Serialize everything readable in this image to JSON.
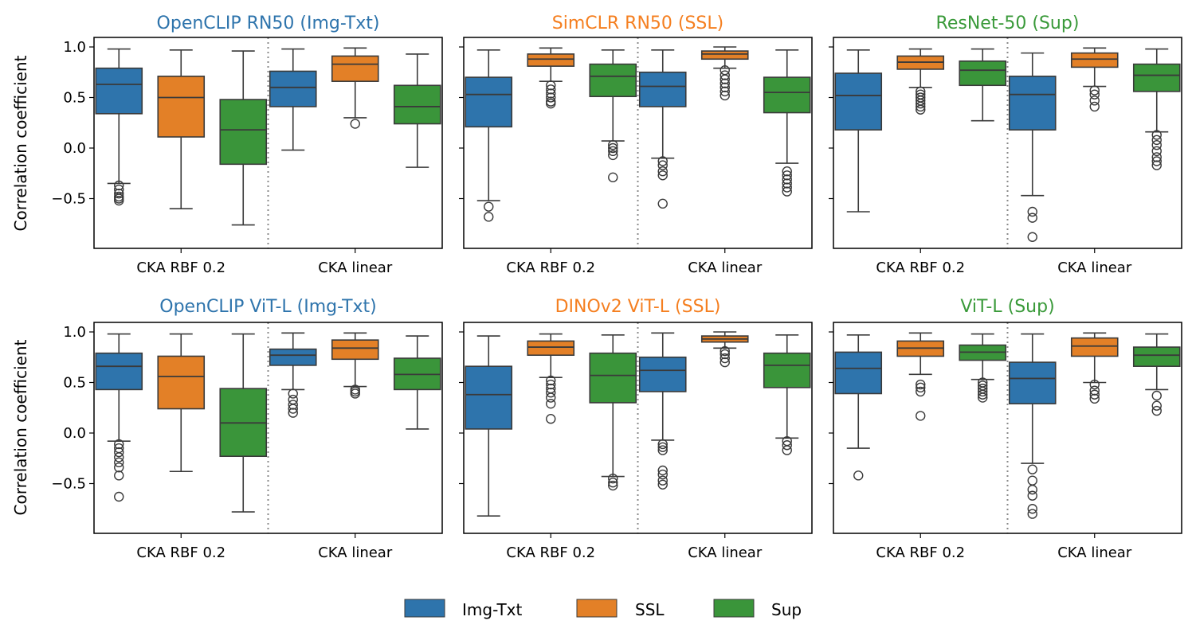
{
  "legend": {
    "position": "bottom-center",
    "items": [
      {
        "label": "Img-Txt",
        "color": "#2e74ac"
      },
      {
        "label": "SSL",
        "color": "#e38027"
      },
      {
        "label": "Sup",
        "color": "#3a953a"
      }
    ]
  },
  "y_axis_label": "Correlation coefficient",
  "chart_data": [
    {
      "type": "boxplot",
      "title": "OpenCLIP RN50 (Img-Txt)",
      "title_color": "#2e74ac",
      "categories": [
        "CKA RBF 0.2",
        "CKA linear"
      ],
      "ylabel": "Correlation coefficient",
      "yticks": [
        1.0,
        0.5,
        0.0,
        -0.5
      ],
      "ytick_labels": [
        "1.0",
        "0.5",
        "0.0",
        "−0.5"
      ],
      "ylim": [
        -1.0,
        1.1
      ],
      "series": [
        {
          "name": "Img-Txt",
          "boxes": [
            {
              "whislo": -0.35,
              "q1": 0.34,
              "med": 0.63,
              "q3": 0.79,
              "whishi": 0.98,
              "fliers": [
                -0.37,
                -0.41,
                -0.45,
                -0.48,
                -0.5,
                -0.52
              ]
            },
            {
              "whislo": -0.02,
              "q1": 0.41,
              "med": 0.6,
              "q3": 0.76,
              "whishi": 0.98,
              "fliers": []
            }
          ]
        },
        {
          "name": "SSL",
          "boxes": [
            {
              "whislo": -0.6,
              "q1": 0.11,
              "med": 0.5,
              "q3": 0.71,
              "whishi": 0.97,
              "fliers": []
            },
            {
              "whislo": 0.3,
              "q1": 0.66,
              "med": 0.83,
              "q3": 0.91,
              "whishi": 0.99,
              "fliers": [
                0.24
              ]
            }
          ]
        },
        {
          "name": "Sup",
          "boxes": [
            {
              "whislo": -0.76,
              "q1": -0.16,
              "med": 0.18,
              "q3": 0.48,
              "whishi": 0.96,
              "fliers": []
            },
            {
              "whislo": -0.19,
              "q1": 0.24,
              "med": 0.41,
              "q3": 0.62,
              "whishi": 0.93,
              "fliers": []
            }
          ]
        }
      ]
    },
    {
      "type": "boxplot",
      "title": "SimCLR RN50 (SSL)",
      "title_color": "#f57f20",
      "categories": [
        "CKA RBF 0.2",
        "CKA linear"
      ],
      "ylabel": "",
      "yticks": [
        1.0,
        0.5,
        0.0,
        -0.5
      ],
      "ytick_labels": [],
      "ylim": [
        -1.0,
        1.1
      ],
      "series": [
        {
          "name": "Img-Txt",
          "boxes": [
            {
              "whislo": -0.52,
              "q1": 0.21,
              "med": 0.53,
              "q3": 0.7,
              "whishi": 0.97,
              "fliers": [
                -0.58,
                -0.68
              ]
            },
            {
              "whislo": -0.1,
              "q1": 0.41,
              "med": 0.61,
              "q3": 0.75,
              "whishi": 0.97,
              "fliers": [
                -0.13,
                -0.17,
                -0.23,
                -0.27,
                -0.55
              ]
            }
          ]
        },
        {
          "name": "SSL",
          "boxes": [
            {
              "whislo": 0.66,
              "q1": 0.81,
              "med": 0.88,
              "q3": 0.93,
              "whishi": 0.99,
              "fliers": [
                0.62,
                0.58,
                0.54,
                0.5,
                0.46,
                0.44
              ]
            },
            {
              "whislo": 0.79,
              "q1": 0.88,
              "med": 0.93,
              "q3": 0.96,
              "whishi": 1.0,
              "fliers": [
                0.77,
                0.72,
                0.68,
                0.64,
                0.6,
                0.56,
                0.52
              ]
            }
          ]
        },
        {
          "name": "Sup",
          "boxes": [
            {
              "whislo": 0.07,
              "q1": 0.51,
              "med": 0.71,
              "q3": 0.83,
              "whishi": 0.97,
              "fliers": [
                0.03,
                0.0,
                -0.03,
                -0.07,
                -0.29
              ]
            },
            {
              "whislo": -0.15,
              "q1": 0.35,
              "med": 0.55,
              "q3": 0.7,
              "whishi": 0.97,
              "fliers": [
                -0.23,
                -0.27,
                -0.31,
                -0.35,
                -0.39,
                -0.43
              ]
            }
          ]
        }
      ]
    },
    {
      "type": "boxplot",
      "title": "ResNet-50 (Sup)",
      "title_color": "#3a9a3a",
      "categories": [
        "CKA RBF 0.2",
        "CKA linear"
      ],
      "ylabel": "",
      "yticks": [
        1.0,
        0.5,
        0.0,
        -0.5
      ],
      "ytick_labels": [],
      "ylim": [
        -1.0,
        1.1
      ],
      "series": [
        {
          "name": "Img-Txt",
          "boxes": [
            {
              "whislo": -0.63,
              "q1": 0.18,
              "med": 0.52,
              "q3": 0.74,
              "whishi": 0.97,
              "fliers": []
            },
            {
              "whislo": -0.47,
              "q1": 0.18,
              "med": 0.53,
              "q3": 0.71,
              "whishi": 0.94,
              "fliers": [
                -0.63,
                -0.69,
                -0.88
              ]
            }
          ]
        },
        {
          "name": "SSL",
          "boxes": [
            {
              "whislo": 0.6,
              "q1": 0.78,
              "med": 0.85,
              "q3": 0.91,
              "whishi": 0.98,
              "fliers": [
                0.56,
                0.53,
                0.5,
                0.47,
                0.44,
                0.41,
                0.38
              ]
            },
            {
              "whislo": 0.61,
              "q1": 0.8,
              "med": 0.88,
              "q3": 0.94,
              "whishi": 0.99,
              "fliers": [
                0.57,
                0.53,
                0.47,
                0.41
              ]
            }
          ]
        },
        {
          "name": "Sup",
          "boxes": [
            {
              "whislo": 0.27,
              "q1": 0.62,
              "med": 0.77,
              "q3": 0.86,
              "whishi": 0.98,
              "fliers": []
            },
            {
              "whislo": 0.16,
              "q1": 0.56,
              "med": 0.72,
              "q3": 0.83,
              "whishi": 0.98,
              "fliers": [
                0.13,
                0.08,
                0.03,
                -0.03,
                -0.09,
                -0.13,
                -0.17
              ]
            }
          ]
        }
      ]
    },
    {
      "type": "boxplot",
      "title": "OpenCLIP ViT-L (Img-Txt)",
      "title_color": "#2e74ac",
      "categories": [
        "CKA RBF 0.2",
        "CKA linear"
      ],
      "ylabel": "Correlation coefficient",
      "yticks": [
        1.0,
        0.5,
        0.0,
        -0.5
      ],
      "ytick_labels": [
        "1.0",
        "0.5",
        "0.0",
        "−0.5"
      ],
      "ylim": [
        -1.0,
        1.1
      ],
      "series": [
        {
          "name": "Img-Txt",
          "boxes": [
            {
              "whislo": -0.08,
              "q1": 0.43,
              "med": 0.66,
              "q3": 0.79,
              "whishi": 0.98,
              "fliers": [
                -0.11,
                -0.15,
                -0.19,
                -0.24,
                -0.29,
                -0.34,
                -0.42,
                -0.63
              ]
            },
            {
              "whislo": 0.43,
              "q1": 0.67,
              "med": 0.77,
              "q3": 0.83,
              "whishi": 0.99,
              "fliers": [
                0.39,
                0.33,
                0.28,
                0.24,
                0.2
              ]
            }
          ]
        },
        {
          "name": "SSL",
          "boxes": [
            {
              "whislo": -0.38,
              "q1": 0.24,
              "med": 0.56,
              "q3": 0.76,
              "whishi": 0.98,
              "fliers": []
            },
            {
              "whislo": 0.46,
              "q1": 0.73,
              "med": 0.84,
              "q3": 0.92,
              "whishi": 0.99,
              "fliers": [
                0.43,
                0.41,
                0.39
              ]
            }
          ]
        },
        {
          "name": "Sup",
          "boxes": [
            {
              "whislo": -0.78,
              "q1": -0.23,
              "med": 0.1,
              "q3": 0.44,
              "whishi": 0.98,
              "fliers": []
            },
            {
              "whislo": 0.04,
              "q1": 0.43,
              "med": 0.58,
              "q3": 0.74,
              "whishi": 0.96,
              "fliers": []
            }
          ]
        }
      ]
    },
    {
      "type": "boxplot",
      "title": "DINOv2 ViT-L (SSL)",
      "title_color": "#f57f20",
      "categories": [
        "CKA RBF 0.2",
        "CKA linear"
      ],
      "ylabel": "",
      "yticks": [
        1.0,
        0.5,
        0.0,
        -0.5
      ],
      "ytick_labels": [],
      "ylim": [
        -1.0,
        1.1
      ],
      "series": [
        {
          "name": "Img-Txt",
          "boxes": [
            {
              "whislo": -0.82,
              "q1": 0.04,
              "med": 0.38,
              "q3": 0.66,
              "whishi": 0.96,
              "fliers": []
            },
            {
              "whislo": -0.07,
              "q1": 0.41,
              "med": 0.62,
              "q3": 0.75,
              "whishi": 0.99,
              "fliers": [
                -0.11,
                -0.14,
                -0.17,
                -0.37,
                -0.41,
                -0.47,
                -0.51
              ]
            }
          ]
        },
        {
          "name": "SSL",
          "boxes": [
            {
              "whislo": 0.55,
              "q1": 0.77,
              "med": 0.85,
              "q3": 0.91,
              "whishi": 0.98,
              "fliers": [
                0.52,
                0.48,
                0.44,
                0.4,
                0.35,
                0.29,
                0.14
              ]
            },
            {
              "whislo": 0.84,
              "q1": 0.9,
              "med": 0.93,
              "q3": 0.96,
              "whishi": 1.0,
              "fliers": [
                0.81,
                0.78,
                0.74,
                0.7
              ]
            }
          ]
        },
        {
          "name": "Sup",
          "boxes": [
            {
              "whislo": -0.43,
              "q1": 0.3,
              "med": 0.57,
              "q3": 0.79,
              "whishi": 0.97,
              "fliers": [
                -0.45,
                -0.49,
                -0.52
              ]
            },
            {
              "whislo": -0.05,
              "q1": 0.45,
              "med": 0.67,
              "q3": 0.79,
              "whishi": 0.97,
              "fliers": [
                -0.08,
                -0.12,
                -0.17
              ]
            }
          ]
        }
      ]
    },
    {
      "type": "boxplot",
      "title": "ViT-L (Sup)",
      "title_color": "#3a9a3a",
      "categories": [
        "CKA RBF 0.2",
        "CKA linear"
      ],
      "ylabel": "",
      "yticks": [
        1.0,
        0.5,
        0.0,
        -0.5
      ],
      "ytick_labels": [],
      "ylim": [
        -1.0,
        1.1
      ],
      "series": [
        {
          "name": "Img-Txt",
          "boxes": [
            {
              "whislo": -0.15,
              "q1": 0.39,
              "med": 0.64,
              "q3": 0.8,
              "whishi": 0.97,
              "fliers": [
                -0.42
              ]
            },
            {
              "whislo": -0.3,
              "q1": 0.29,
              "med": 0.54,
              "q3": 0.7,
              "whishi": 0.98,
              "fliers": [
                -0.36,
                -0.47,
                -0.56,
                -0.62,
                -0.75,
                -0.8
              ]
            }
          ]
        },
        {
          "name": "SSL",
          "boxes": [
            {
              "whislo": 0.58,
              "q1": 0.76,
              "med": 0.84,
              "q3": 0.91,
              "whishi": 0.99,
              "fliers": [
                0.48,
                0.45,
                0.41,
                0.17
              ]
            },
            {
              "whislo": 0.5,
              "q1": 0.76,
              "med": 0.86,
              "q3": 0.94,
              "whishi": 0.99,
              "fliers": [
                0.48,
                0.42,
                0.38,
                0.34
              ]
            }
          ]
        },
        {
          "name": "Sup",
          "boxes": [
            {
              "whislo": 0.53,
              "q1": 0.72,
              "med": 0.8,
              "q3": 0.87,
              "whishi": 0.98,
              "fliers": [
                0.5,
                0.47,
                0.44,
                0.41,
                0.38,
                0.35
              ]
            },
            {
              "whislo": 0.43,
              "q1": 0.66,
              "med": 0.77,
              "q3": 0.85,
              "whishi": 0.98,
              "fliers": [
                0.37,
                0.27,
                0.22
              ]
            }
          ]
        }
      ]
    }
  ]
}
